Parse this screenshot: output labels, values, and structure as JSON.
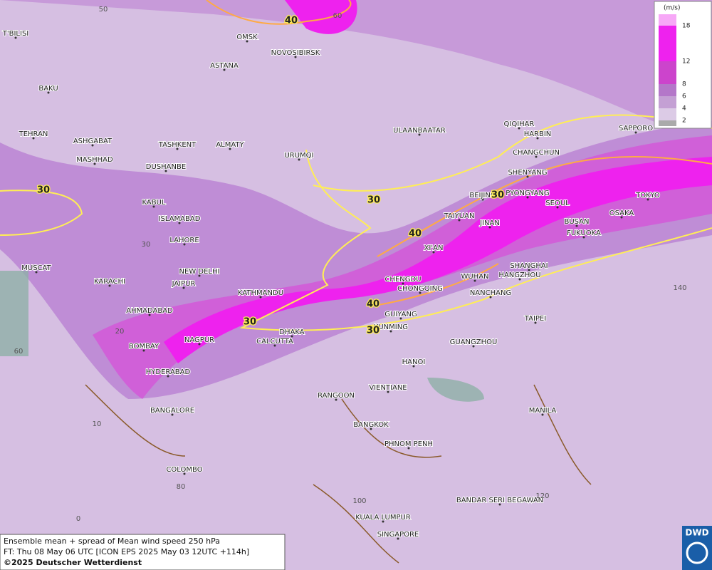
{
  "map": {
    "cities": [
      "OMSK",
      "NOVOSIBIRSK",
      "ASTANA",
      "T'BILISI",
      "BAKU",
      "TEHRAN",
      "ASHGABAT",
      "MASHHAD",
      "TASHKENT",
      "ALMATY",
      "DUSHANBE",
      "URUMQI",
      "ULAANBAATAR",
      "QIQIHAR",
      "HARBIN",
      "CHANGCHUN",
      "SHENYANG",
      "SAPPORO",
      "BEIJING",
      "PYONGYANG",
      "SEOUL",
      "TOKYO",
      "KABUL",
      "ISLAMABAD",
      "TAIYUAN",
      "JINAN",
      "BUSAN",
      "OSAKA",
      "FUKUOKA",
      "LAHORE",
      "XI'AN",
      "MUSCAT",
      "NEW DELHI",
      "SHANGHAI",
      "HANGZHOU",
      "KARACHI",
      "JAIPUR",
      "CHENGDU",
      "WUHAN",
      "KATHMANDU",
      "CHONGQING",
      "NANCHANG",
      "AHMADABAD",
      "GUIYANG",
      "TAIPEI",
      "KUNMING",
      "DHAKA",
      "NAGPUR",
      "CALCUTTA",
      "GUANGZHOU",
      "BOMBAY",
      "HANOI",
      "HYDERABAD",
      "VIENTIANE",
      "RANGOON",
      "BANGALORE",
      "MANILA",
      "BANGKOK",
      "PHNOM PENH",
      "COLOMBO",
      "BANDAR SERI BEGAWAN",
      "KUALA LUMPUR",
      "SINGAPORE"
    ],
    "contour_labels": [
      "40",
      "30",
      "30",
      "40",
      "30",
      "40",
      "30",
      "30"
    ],
    "graticule_labels": [
      "50",
      "60",
      "30",
      "20",
      "60",
      "10",
      "80",
      "0",
      "100",
      "120",
      "140"
    ]
  },
  "legend": {
    "unit": "(m/s)",
    "levels": [
      "18",
      "12",
      "8",
      "6",
      "4",
      "2"
    ]
  },
  "caption": {
    "line1": "Ensemble mean + spread of Mean wind speed 250 hPa",
    "line2": "FT: Thu 08 May 06 UTC [ICON EPS 2025 May 03 12UTC +114h]",
    "line3": "©2025 Deutscher Wetterdienst"
  },
  "logo": "DWD"
}
